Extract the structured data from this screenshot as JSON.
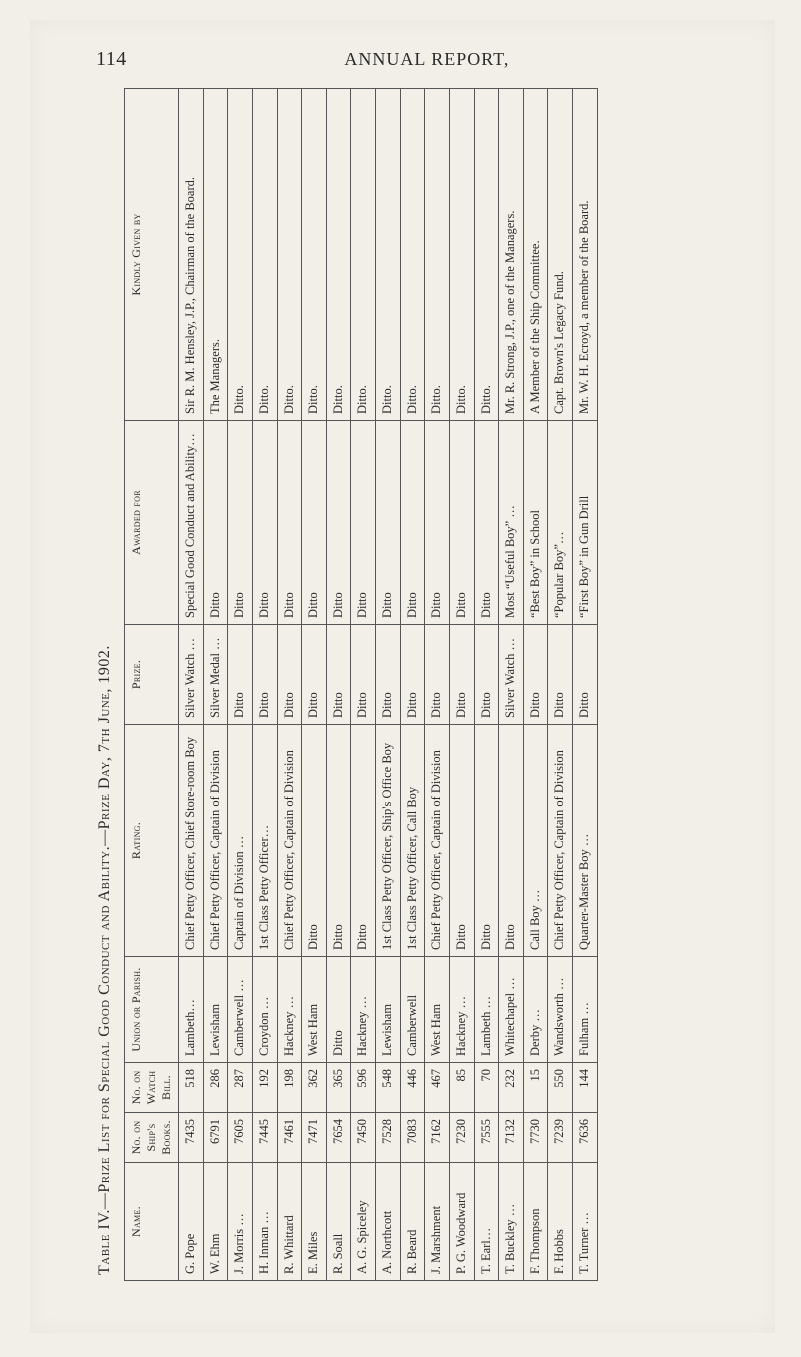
{
  "page_number": "114",
  "running_head": "ANNUAL REPORT,",
  "table_title": "Table IV.—Prize List for Special Good Conduct and Ability.—Prize Day, 7th June, 1902.",
  "columns": {
    "name": "Name.",
    "ships_books": "No. on Ship's Books.",
    "watch_bill": "No. on Watch Bill.",
    "parish": "Union or Parish.",
    "rating": "Rating.",
    "prize": "Prize.",
    "awarded_for": "Awarded for",
    "given_by": "Kindly Given by"
  },
  "rows": [
    {
      "name": "G. Pope",
      "ships_books": "7435",
      "watch_bill": "518",
      "parish": "Lambeth…",
      "rating": "Chief Petty Officer, Chief Store-room Boy",
      "prize": "Silver Watch …",
      "awarded_for": "Special Good Conduct and Ability…",
      "given_by": "Sir R. M. Hensley, J.P., Chairman of the Board."
    },
    {
      "name": "W. Ehm",
      "ships_books": "6791",
      "watch_bill": "286",
      "parish": "Lewisham",
      "rating": "Chief Petty Officer, Captain of Division",
      "prize": "Silver Medal …",
      "awarded_for": "Ditto",
      "given_by": "The Managers."
    },
    {
      "name": "J. Morris …",
      "ships_books": "7605",
      "watch_bill": "287",
      "parish": "Camberwell …",
      "rating": "Captain of Division …",
      "prize": "Ditto",
      "awarded_for": "Ditto",
      "given_by": "Ditto."
    },
    {
      "name": "H. Inman …",
      "ships_books": "7445",
      "watch_bill": "192",
      "parish": "Croydon …",
      "rating": "1st Class Petty Officer…",
      "prize": "Ditto",
      "awarded_for": "Ditto",
      "given_by": "Ditto."
    },
    {
      "name": "R. Whittard",
      "ships_books": "7461",
      "watch_bill": "198",
      "parish": "Hackney …",
      "rating": "Chief Petty Officer, Captain of Division",
      "prize": "Ditto",
      "awarded_for": "Ditto",
      "given_by": "Ditto."
    },
    {
      "name": "E. Miles",
      "ships_books": "7471",
      "watch_bill": "362",
      "parish": "West Ham",
      "rating": "Ditto",
      "prize": "Ditto",
      "awarded_for": "Ditto",
      "given_by": "Ditto."
    },
    {
      "name": "R. Soall",
      "ships_books": "7654",
      "watch_bill": "365",
      "parish": "Ditto",
      "rating": "Ditto",
      "prize": "Ditto",
      "awarded_for": "Ditto",
      "given_by": "Ditto."
    },
    {
      "name": "A. G. Spiceley",
      "ships_books": "7450",
      "watch_bill": "596",
      "parish": "Hackney …",
      "rating": "Ditto",
      "prize": "Ditto",
      "awarded_for": "Ditto",
      "given_by": "Ditto."
    },
    {
      "name": "A. Northcott",
      "ships_books": "7528",
      "watch_bill": "548",
      "parish": "Lewisham",
      "rating": "1st Class Petty Officer, Ship's Office Boy",
      "prize": "Ditto",
      "awarded_for": "Ditto",
      "given_by": "Ditto."
    },
    {
      "name": "R. Beard",
      "ships_books": "7083",
      "watch_bill": "446",
      "parish": "Camberwell",
      "rating": "1st Class Petty Officer, Call Boy",
      "prize": "Ditto",
      "awarded_for": "Ditto",
      "given_by": "Ditto."
    },
    {
      "name": "J. Marshment",
      "ships_books": "7162",
      "watch_bill": "467",
      "parish": "West Ham",
      "rating": "Chief Petty Officer, Captain of Division",
      "prize": "Ditto",
      "awarded_for": "Ditto",
      "given_by": "Ditto."
    },
    {
      "name": "P. G. Woodward",
      "ships_books": "7230",
      "watch_bill": "85",
      "parish": "Hackney …",
      "rating": "Ditto",
      "prize": "Ditto",
      "awarded_for": "Ditto",
      "given_by": "Ditto."
    },
    {
      "name": "T. Earl…",
      "ships_books": "7555",
      "watch_bill": "70",
      "parish": "Lambeth …",
      "rating": "Ditto",
      "prize": "Ditto",
      "awarded_for": "Ditto",
      "given_by": "Ditto."
    },
    {
      "name": "T. Buckley …",
      "ships_books": "7132",
      "watch_bill": "232",
      "parish": "Whitechapel …",
      "rating": "Ditto",
      "prize": "Silver Watch …",
      "awarded_for": "Most “Useful Boy” …",
      "given_by": "Mr. R. Strong, J.P., one of the Managers."
    },
    {
      "name": "F. Thompson",
      "ships_books": "7730",
      "watch_bill": "15",
      "parish": "Derby …",
      "rating": "Call Boy …",
      "prize": "Ditto",
      "awarded_for": "“Best Boy” in School",
      "given_by": "A Member of the Ship Committee."
    },
    {
      "name": "F. Hobbs",
      "ships_books": "7239",
      "watch_bill": "550",
      "parish": "Wandsworth …",
      "rating": "Chief Petty Officer, Captain of Division",
      "prize": "Ditto",
      "awarded_for": "“Popular Boy”…",
      "given_by": "Capt. Brown's Legacy Fund."
    },
    {
      "name": "T. Turner …",
      "ships_books": "7636",
      "watch_bill": "144",
      "parish": "Fulham …",
      "rating": "Quarter-Master Boy …",
      "prize": "Ditto",
      "awarded_for": "“First Boy” in Gun Drill",
      "given_by": "Mr. W. H. Ecroyd, a member of the Board."
    }
  ]
}
